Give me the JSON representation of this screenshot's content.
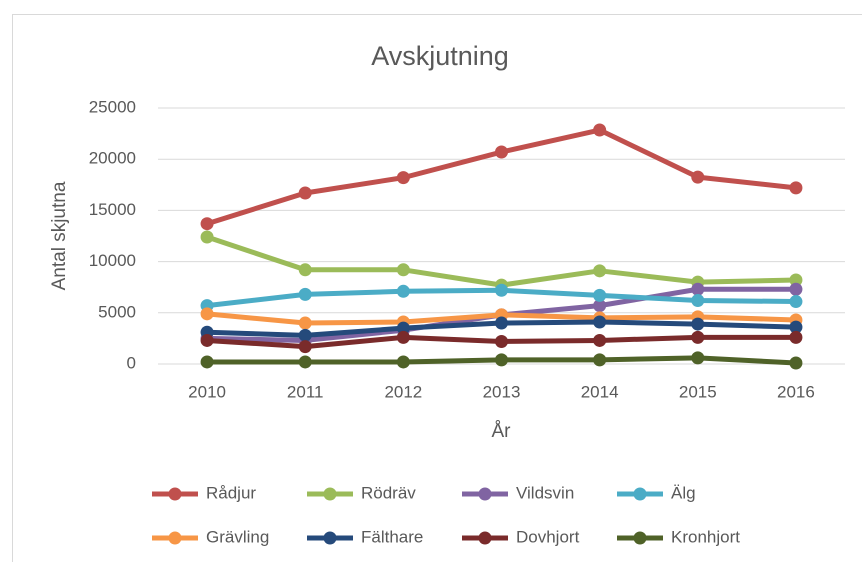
{
  "chart_data": {
    "type": "line",
    "title": "Avskjutning",
    "x_label": "År",
    "y_label": "Antal skjutna",
    "categories": [
      "2010",
      "2011",
      "2012",
      "2013",
      "2014",
      "2015",
      "2016"
    ],
    "ylim": [
      0,
      25000
    ],
    "yticks": [
      0,
      5000,
      10000,
      15000,
      20000,
      25000
    ],
    "grid": true,
    "legend": "bottom",
    "series": [
      {
        "name": "Rådjur",
        "color": "#c0504d",
        "values": [
          13700,
          16700,
          18200,
          20700,
          22850,
          18250,
          17200
        ]
      },
      {
        "name": "Rödräv",
        "color": "#9bbb59",
        "values": [
          12400,
          9200,
          9200,
          7700,
          9100,
          8000,
          8200
        ]
      },
      {
        "name": "Vildsvin",
        "color": "#8064a2",
        "values": [
          2500,
          2300,
          3300,
          4800,
          5700,
          7300,
          7300
        ]
      },
      {
        "name": "Älg",
        "color": "#4bacc6",
        "values": [
          5700,
          6800,
          7100,
          7200,
          6700,
          6200,
          6100
        ]
      },
      {
        "name": "Grävling",
        "color": "#f79646",
        "values": [
          4900,
          4000,
          4100,
          4800,
          4500,
          4600,
          4300
        ]
      },
      {
        "name": "Fälthare",
        "color": "#254a7b",
        "values": [
          3100,
          2800,
          3500,
          4000,
          4100,
          3900,
          3600
        ]
      },
      {
        "name": "Dovhjort",
        "color": "#7a2b2b",
        "values": [
          2300,
          1700,
          2600,
          2200,
          2300,
          2600,
          2600
        ]
      },
      {
        "name": "Kronhjort",
        "color": "#4f6228",
        "values": [
          200,
          200,
          200,
          400,
          400,
          600,
          100
        ]
      }
    ]
  }
}
